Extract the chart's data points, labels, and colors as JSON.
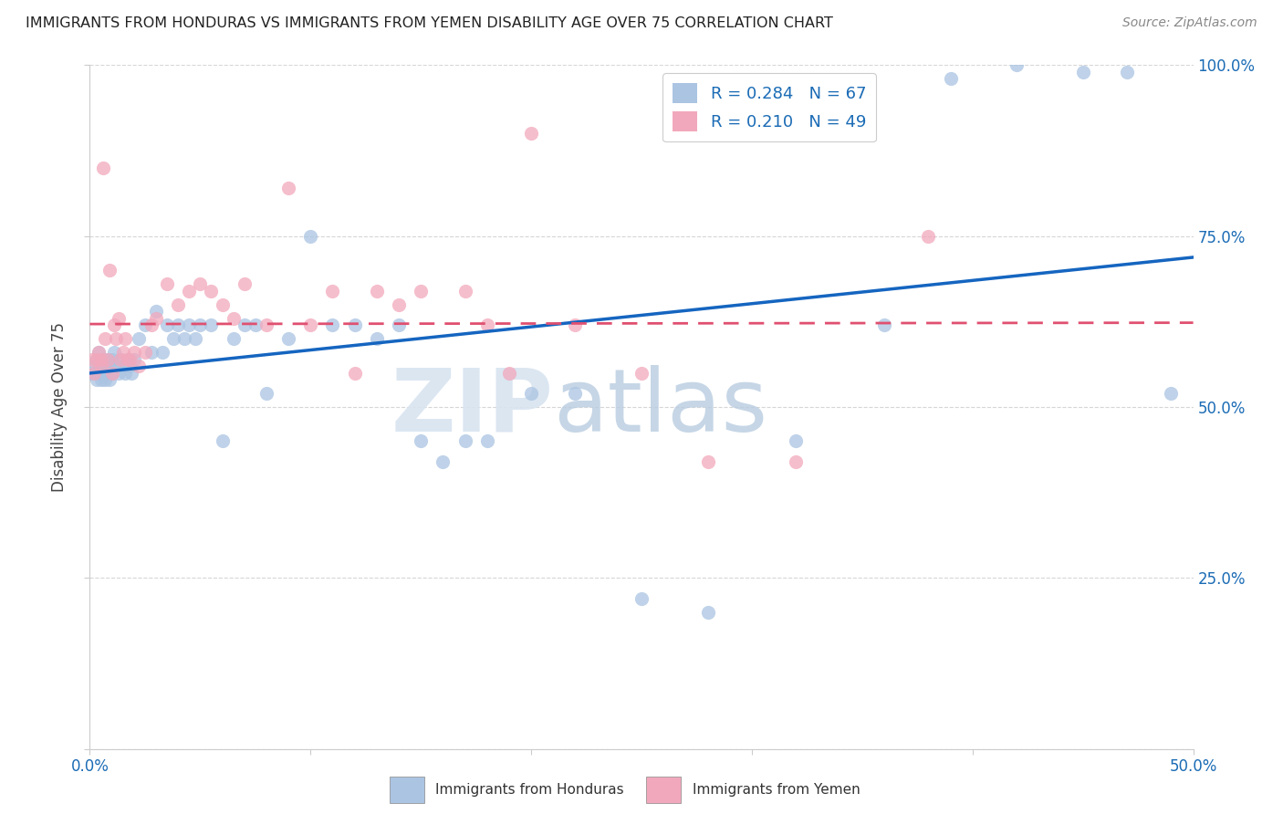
{
  "title": "IMMIGRANTS FROM HONDURAS VS IMMIGRANTS FROM YEMEN DISABILITY AGE OVER 75 CORRELATION CHART",
  "source": "Source: ZipAtlas.com",
  "ylabel": "Disability Age Over 75",
  "xlim": [
    0.0,
    0.5
  ],
  "ylim": [
    0.0,
    1.0
  ],
  "R_honduras": 0.284,
  "N_honduras": 67,
  "R_yemen": 0.21,
  "N_yemen": 49,
  "color_honduras": "#aac4e2",
  "color_yemen": "#f2a8bc",
  "line_color_honduras": "#1565c0",
  "line_color_yemen": "#e05070",
  "watermark_color": "#d0dff0",
  "background_color": "#ffffff",
  "grid_color": "#cccccc",
  "honduras_x": [
    0.001,
    0.002,
    0.003,
    0.003,
    0.004,
    0.004,
    0.005,
    0.005,
    0.006,
    0.006,
    0.007,
    0.007,
    0.008,
    0.008,
    0.009,
    0.009,
    0.01,
    0.01,
    0.011,
    0.012,
    0.013,
    0.014,
    0.015,
    0.016,
    0.017,
    0.018,
    0.019,
    0.02,
    0.022,
    0.025,
    0.028,
    0.03,
    0.033,
    0.035,
    0.038,
    0.04,
    0.043,
    0.045,
    0.048,
    0.05,
    0.055,
    0.06,
    0.065,
    0.07,
    0.075,
    0.08,
    0.09,
    0.1,
    0.11,
    0.12,
    0.13,
    0.14,
    0.15,
    0.16,
    0.17,
    0.18,
    0.2,
    0.22,
    0.25,
    0.28,
    0.32,
    0.36,
    0.39,
    0.42,
    0.45,
    0.47,
    0.49
  ],
  "honduras_y": [
    0.55,
    0.56,
    0.54,
    0.57,
    0.55,
    0.58,
    0.54,
    0.56,
    0.55,
    0.57,
    0.54,
    0.56,
    0.55,
    0.57,
    0.54,
    0.56,
    0.55,
    0.57,
    0.58,
    0.56,
    0.55,
    0.57,
    0.56,
    0.55,
    0.57,
    0.56,
    0.55,
    0.57,
    0.6,
    0.62,
    0.58,
    0.64,
    0.58,
    0.62,
    0.6,
    0.62,
    0.6,
    0.62,
    0.6,
    0.62,
    0.62,
    0.45,
    0.6,
    0.62,
    0.62,
    0.52,
    0.6,
    0.75,
    0.62,
    0.62,
    0.6,
    0.62,
    0.45,
    0.42,
    0.45,
    0.45,
    0.52,
    0.52,
    0.22,
    0.2,
    0.45,
    0.62,
    0.98,
    1.0,
    0.99,
    0.99,
    0.52
  ],
  "yemen_x": [
    0.001,
    0.002,
    0.003,
    0.004,
    0.005,
    0.005,
    0.006,
    0.007,
    0.008,
    0.009,
    0.01,
    0.011,
    0.012,
    0.013,
    0.014,
    0.015,
    0.016,
    0.017,
    0.018,
    0.02,
    0.022,
    0.025,
    0.028,
    0.03,
    0.035,
    0.04,
    0.045,
    0.05,
    0.055,
    0.06,
    0.065,
    0.07,
    0.08,
    0.09,
    0.1,
    0.11,
    0.12,
    0.13,
    0.14,
    0.15,
    0.17,
    0.18,
    0.19,
    0.2,
    0.22,
    0.25,
    0.28,
    0.32,
    0.38
  ],
  "yemen_y": [
    0.57,
    0.55,
    0.57,
    0.58,
    0.56,
    0.57,
    0.85,
    0.6,
    0.57,
    0.7,
    0.55,
    0.62,
    0.6,
    0.63,
    0.57,
    0.58,
    0.6,
    0.57,
    0.57,
    0.58,
    0.56,
    0.58,
    0.62,
    0.63,
    0.68,
    0.65,
    0.67,
    0.68,
    0.67,
    0.65,
    0.63,
    0.68,
    0.62,
    0.82,
    0.62,
    0.67,
    0.55,
    0.67,
    0.65,
    0.67,
    0.67,
    0.62,
    0.55,
    0.9,
    0.62,
    0.55,
    0.42,
    0.42,
    0.75
  ]
}
